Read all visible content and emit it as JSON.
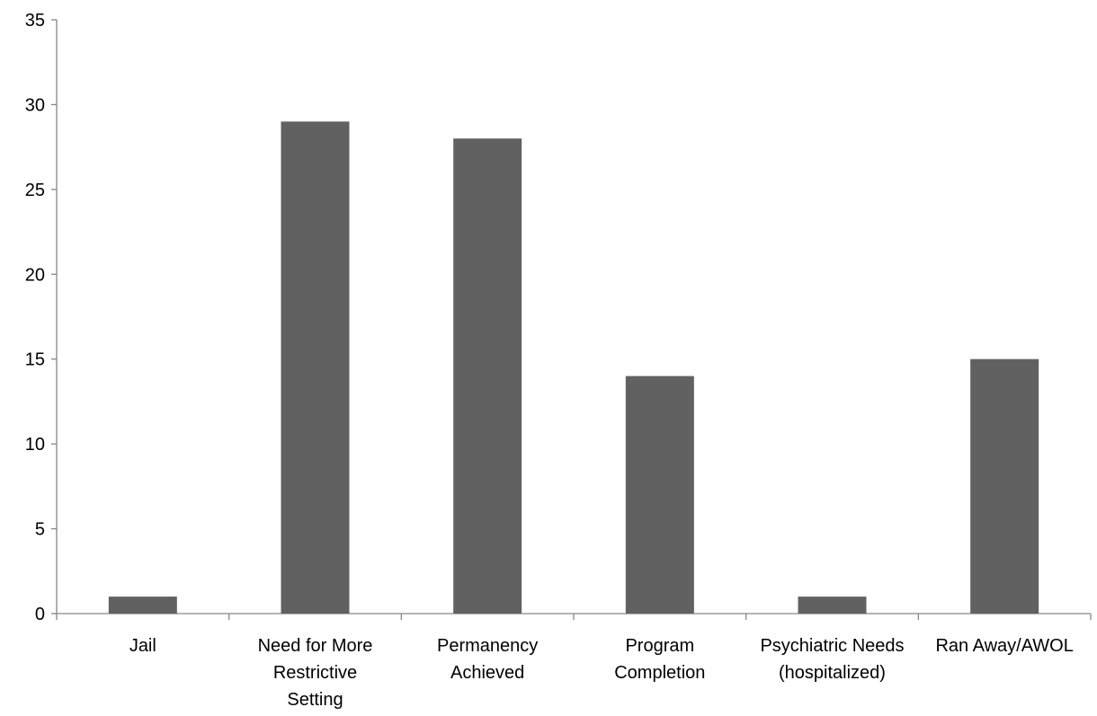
{
  "chart_data": {
    "type": "bar",
    "title": "",
    "xlabel": "",
    "ylabel": "",
    "categories": [
      [
        "Jail"
      ],
      [
        "Need for More",
        "Restrictive",
        "Setting"
      ],
      [
        "Permanency",
        "Achieved"
      ],
      [
        "Program",
        "Completion"
      ],
      [
        "Psychiatric Needs",
        "(hospitalized)"
      ],
      [
        "Ran Away/AWOL"
      ]
    ],
    "values": [
      1,
      29,
      28,
      14,
      1,
      15
    ],
    "ylim": [
      0,
      35
    ],
    "yticks": [
      0,
      5,
      10,
      15,
      20,
      25,
      30,
      35
    ],
    "grid": false,
    "legend": "none",
    "bar_color": "#616161",
    "axis_color": "#868686"
  }
}
